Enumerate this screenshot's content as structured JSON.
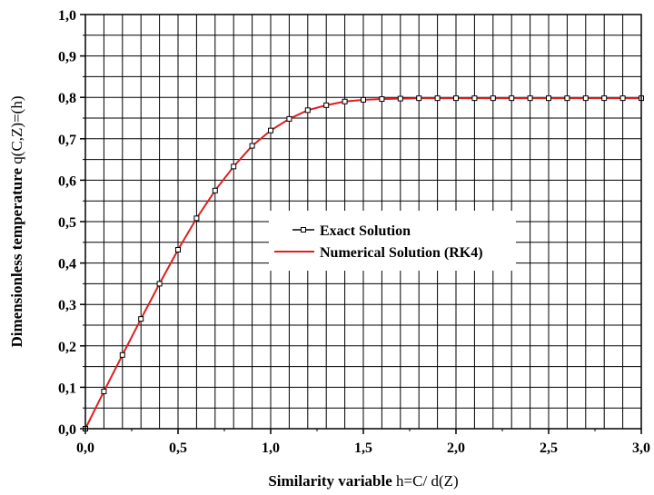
{
  "chart_data": {
    "type": "line",
    "xlabel_main": "Similarity variable ",
    "xlabel_symbol": "h=C/ d(Z)",
    "ylabel_main": "Dimensionless temperature ",
    "ylabel_symbol": "q(C,Z)=(h)",
    "xlim": [
      0,
      3
    ],
    "ylim": [
      0,
      1
    ],
    "grid": true,
    "legend_position": "center-right",
    "x_ticks": [
      "0,0",
      "0,5",
      "1,0",
      "1,5",
      "2,0",
      "2,5",
      "3,0"
    ],
    "y_ticks": [
      "0,0",
      "0,1",
      "0,2",
      "0,3",
      "0,4",
      "0,5",
      "0,6",
      "0,7",
      "0,8",
      "0,9",
      "1,0"
    ],
    "series": [
      {
        "name": "Exact Solution",
        "color": "#000000",
        "marker": "open-square",
        "x": [
          0.0,
          0.1,
          0.2,
          0.3,
          0.4,
          0.5,
          0.6,
          0.7,
          0.8,
          0.9,
          1.0,
          1.1,
          1.2,
          1.3,
          1.4,
          1.5,
          1.6,
          1.7,
          1.8,
          1.9,
          2.0,
          2.1,
          2.2,
          2.3,
          2.4,
          2.5,
          2.6,
          2.7,
          2.8,
          2.9,
          3.0
        ],
        "y": [
          0.0,
          0.09,
          0.178,
          0.265,
          0.35,
          0.432,
          0.508,
          0.575,
          0.633,
          0.683,
          0.72,
          0.748,
          0.769,
          0.781,
          0.79,
          0.794,
          0.796,
          0.797,
          0.798,
          0.798,
          0.798,
          0.798,
          0.798,
          0.798,
          0.798,
          0.798,
          0.798,
          0.798,
          0.798,
          0.798,
          0.798
        ]
      },
      {
        "name": "Numerical Solution (RK4)",
        "color": "#e02020",
        "marker": "none",
        "x": [
          0.0,
          0.1,
          0.2,
          0.3,
          0.4,
          0.5,
          0.6,
          0.7,
          0.8,
          0.9,
          1.0,
          1.1,
          1.2,
          1.3,
          1.4,
          1.5,
          1.6,
          1.7,
          1.8,
          1.9,
          2.0,
          2.1,
          2.2,
          2.3,
          2.4,
          2.5,
          2.6,
          2.7,
          2.8,
          2.9,
          3.0
        ],
        "y": [
          0.0,
          0.09,
          0.178,
          0.265,
          0.35,
          0.432,
          0.508,
          0.575,
          0.633,
          0.683,
          0.72,
          0.748,
          0.769,
          0.781,
          0.79,
          0.794,
          0.796,
          0.797,
          0.798,
          0.798,
          0.798,
          0.798,
          0.798,
          0.798,
          0.798,
          0.798,
          0.798,
          0.798,
          0.798,
          0.798,
          0.798
        ]
      }
    ]
  }
}
